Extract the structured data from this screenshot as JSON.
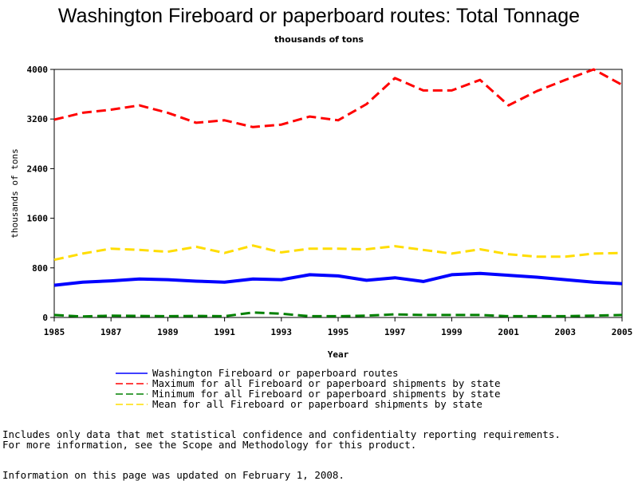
{
  "chart_data": {
    "type": "line",
    "title": "Washington Fireboard or paperboard routes: Total Tonnage",
    "subtitle": "thousands of tons",
    "xlabel": "Year",
    "ylabel": "thousands of tons",
    "xlim": [
      1985,
      2005
    ],
    "ylim": [
      0,
      4000
    ],
    "x_ticks": [
      "1985",
      "1987",
      "1989",
      "1991",
      "1993",
      "1995",
      "1997",
      "1999",
      "2001",
      "2003",
      "2005"
    ],
    "y_ticks": [
      "0",
      "800",
      "1600",
      "2400",
      "3200",
      "4000"
    ],
    "grid": false,
    "legend_position": "bottom",
    "x": [
      1985,
      1986,
      1987,
      1988,
      1989,
      1990,
      1991,
      1992,
      1993,
      1994,
      1995,
      1996,
      1997,
      1998,
      1999,
      2000,
      2001,
      2002,
      2003,
      2004,
      2005
    ],
    "series": [
      {
        "name": "Washington Fireboard or paperboard routes",
        "color": "#0000ff",
        "style": "solid",
        "values": [
          520,
          570,
          590,
          620,
          610,
          585,
          570,
          620,
          610,
          690,
          670,
          600,
          640,
          580,
          690,
          710,
          680,
          650,
          610,
          570,
          545
        ]
      },
      {
        "name": "Maximum for all Fireboard or paperboard shipments by state",
        "color": "#ff0000",
        "style": "dashed",
        "values": [
          3190,
          3300,
          3350,
          3420,
          3300,
          3140,
          3180,
          3070,
          3110,
          3240,
          3180,
          3440,
          3860,
          3660,
          3660,
          3830,
          3420,
          3650,
          3830,
          4000,
          3750
        ]
      },
      {
        "name": "Minimum for all Fireboard or paperboard shipments by state",
        "color": "#008000",
        "style": "dashed",
        "values": [
          40,
          15,
          30,
          25,
          20,
          25,
          20,
          80,
          60,
          20,
          20,
          30,
          50,
          40,
          40,
          40,
          20,
          20,
          20,
          30,
          40
        ]
      },
      {
        "name": "Mean for all Fireboard or paperboard shipments by state",
        "color": "#ffdd00",
        "style": "dashed",
        "values": [
          930,
          1030,
          1110,
          1090,
          1060,
          1140,
          1040,
          1160,
          1050,
          1110,
          1110,
          1100,
          1150,
          1090,
          1030,
          1100,
          1020,
          980,
          980,
          1030,
          1040
        ]
      }
    ]
  },
  "notes": {
    "line1": "Includes only data that met statistical confidence and confidentialty reporting requirements.",
    "line2": "For more information, see the Scope and Methodology for this product.",
    "updated": "Information on this page was updated on February 1, 2008."
  }
}
